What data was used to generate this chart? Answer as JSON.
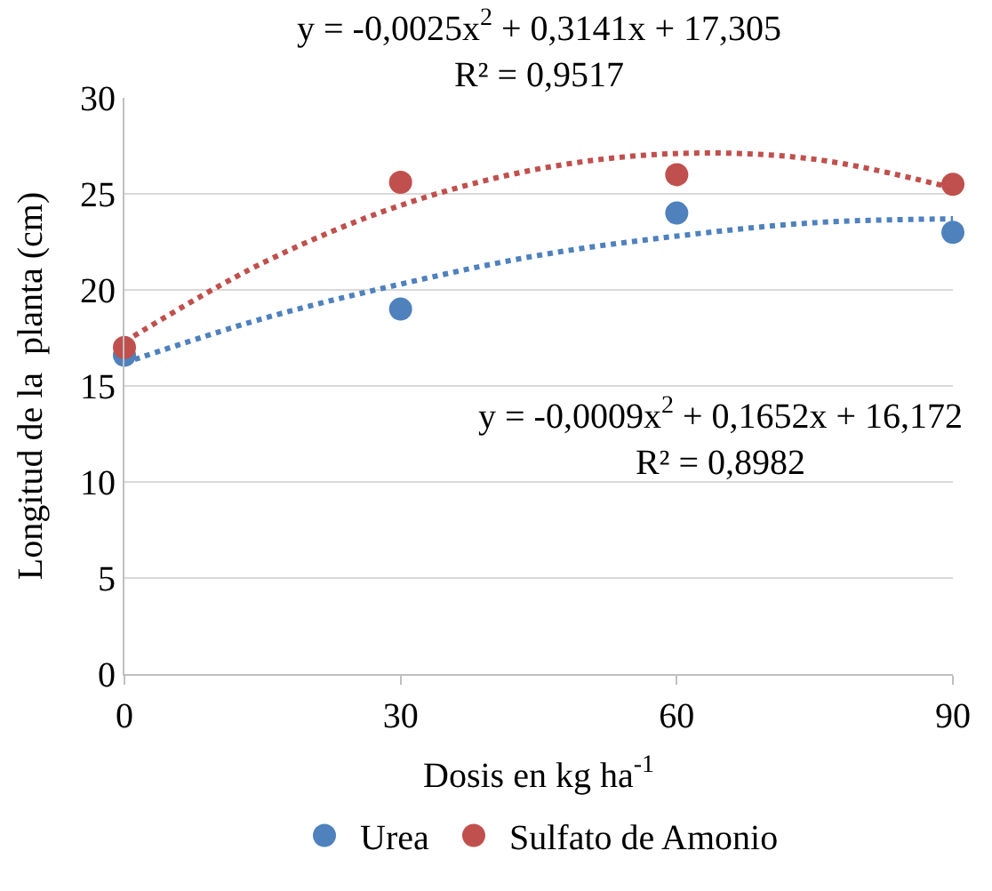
{
  "chart_data": {
    "type": "scatter",
    "xlabel": "Dosis en kg ha$^{-1}$",
    "ylabel": "Longitud de la  planta (cm)",
    "x": [
      0,
      30,
      60,
      90
    ],
    "series": [
      {
        "name": "Urea",
        "color": "#4f81bd",
        "values": [
          16.6,
          19,
          24,
          23
        ]
      },
      {
        "name": "Sulfato de Amonio",
        "color": "#c0504d",
        "values": [
          17,
          25.6,
          26,
          25.5
        ]
      },
      {
        "type": "line",
        "color": "#4f81bd",
        "line_style": "dotted",
        "marker": "none",
        "x": [
          0,
          15,
          30,
          45,
          60,
          75,
          90
        ],
        "values": [
          16.2,
          18.5,
          20.3,
          21.8,
          22.8,
          23.5,
          23.7
        ]
      },
      {
        "type": "line",
        "color": "#c0504d",
        "line_style": "dotted",
        "marker": "none",
        "x": [
          0,
          15,
          30,
          45,
          60,
          75,
          90
        ],
        "values": [
          17.3,
          21.4,
          24.4,
          26.3,
          27.1,
          26.8,
          25.3
        ]
      }
    ],
    "annotations": [
      "y = -0,0025x$^{2}$ + 0,3141x + 17,305\nR² = 0,9517",
      "y = -0,0009x$^{2}$ + 0,1652x + 16,172\nR² = 0,8982"
    ],
    "xlim": [
      0,
      90
    ],
    "xticks": [
      0,
      30,
      60,
      90
    ],
    "ylim": [
      0,
      30
    ],
    "yticks": [
      0,
      5,
      10,
      15,
      20,
      25,
      30
    ],
    "grid": "y",
    "legend": "bottom",
    "marker": "circle"
  }
}
